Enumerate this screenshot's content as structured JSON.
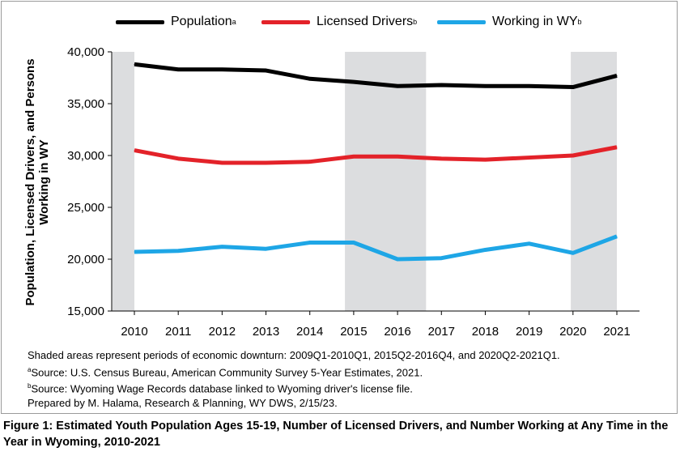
{
  "legend": {
    "population": "Population",
    "population_sup": "a",
    "licensed": "Licensed Drivers",
    "licensed_sup": "b",
    "working": "Working in WY",
    "working_sup": "b"
  },
  "notes": {
    "shading": "Shaded areas represent periods of economic downturn: 2009Q1-2010Q1, 2015Q2-2016Q4, and 2020Q2-2021Q1.",
    "source_a_sup": "a",
    "source_a": "Source: U.S. Census Bureau, American Community Survey 5-Year Estimates, 2021.",
    "source_b_sup": "b",
    "source_b": "Source: Wyoming Wage Records database linked to Wyoming driver's license file.",
    "prepared": "Prepared by M. Halama, Research & Planning, WY DWS, 2/15/23."
  },
  "caption": "Figure 1: Estimated Youth Population Ages 15-19, Number of Licensed Drivers, and Number Working at Any Time in the Year in Wyoming, 2010-2021",
  "chart_data": {
    "type": "line",
    "title": "",
    "ylabel": "Population, Licensed Drivers, and Persons Working in WY",
    "xlabel": "",
    "categories": [
      "2010",
      "2011",
      "2012",
      "2013",
      "2014",
      "2015",
      "2016",
      "2017",
      "2018",
      "2019",
      "2020",
      "2021"
    ],
    "ylim": [
      15000,
      40000
    ],
    "yticks": [
      15000,
      20000,
      25000,
      30000,
      35000,
      40000
    ],
    "ytick_labels": [
      "15,000",
      "20,000",
      "25,000",
      "30,000",
      "35,000",
      "40,000"
    ],
    "grid": false,
    "legend_position": "top",
    "shaded_periods": [
      {
        "label": "2009Q1-2010Q1",
        "from": 2009.5,
        "to": 2010.0
      },
      {
        "label": "2015Q2-2016Q4",
        "from": 2014.8,
        "to": 2016.65
      },
      {
        "label": "2020Q2-2021Q1",
        "from": 2019.95,
        "to": 2021.0
      }
    ],
    "series": [
      {
        "name": "Population",
        "color": "#000000",
        "values": [
          38800,
          38300,
          38300,
          38200,
          37400,
          37100,
          36700,
          36800,
          36700,
          36700,
          36600,
          37700
        ]
      },
      {
        "name": "Licensed Drivers",
        "color": "#e32229",
        "values": [
          30500,
          29700,
          29300,
          29300,
          29400,
          29900,
          29900,
          29700,
          29600,
          29800,
          30000,
          30800
        ]
      },
      {
        "name": "Working in WY",
        "color": "#1ea6e6",
        "values": [
          20700,
          20800,
          21200,
          21000,
          21600,
          21600,
          20000,
          20100,
          20900,
          21500,
          20600,
          22200
        ]
      }
    ],
    "shade_color": "#dcdddf"
  }
}
